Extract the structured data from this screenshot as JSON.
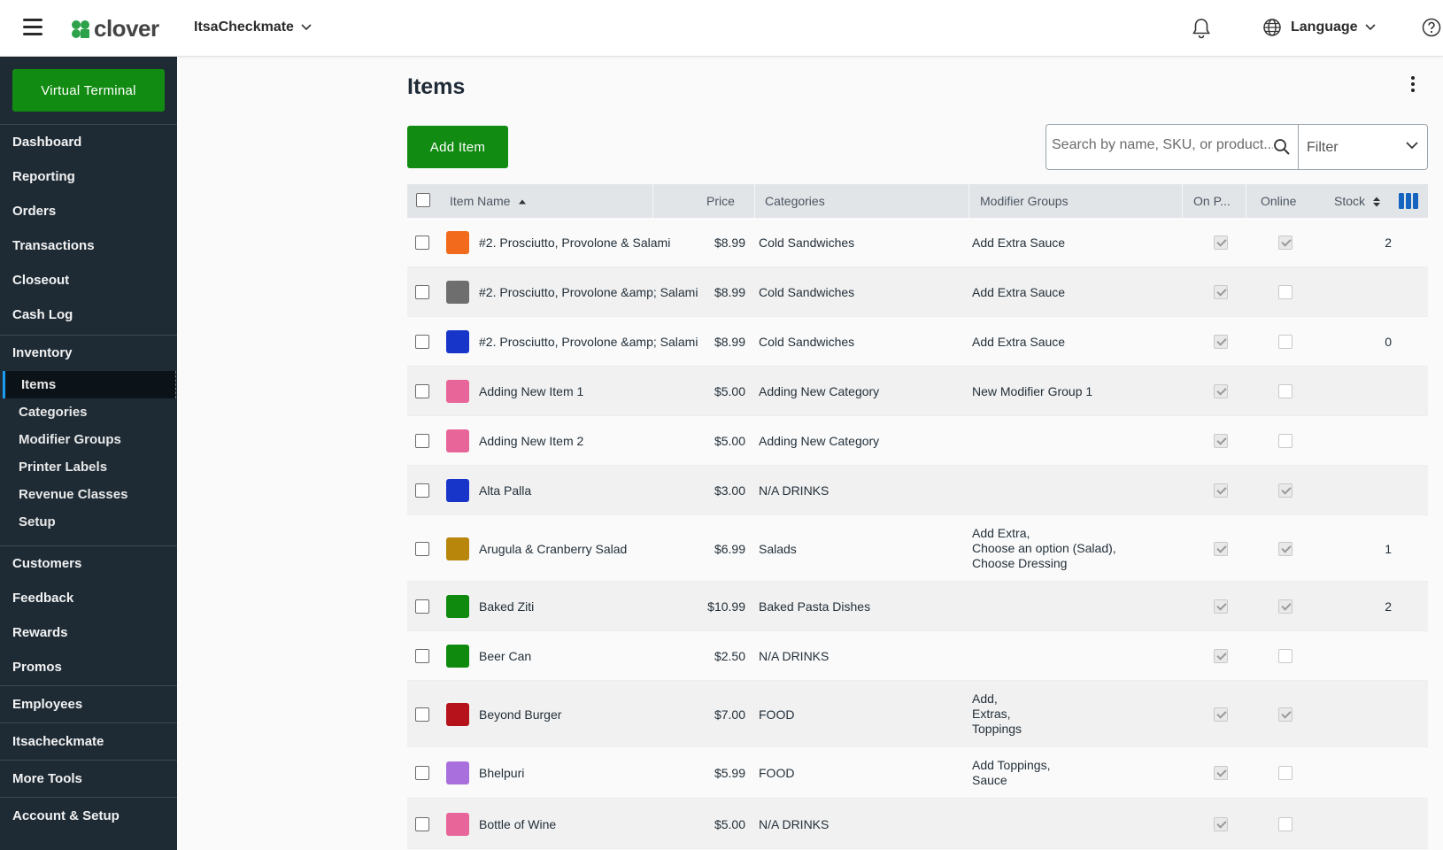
{
  "header": {
    "logo_text": "clover",
    "merchant_name": "ItsaCheckmate",
    "language_label": "Language"
  },
  "sidebar": {
    "virtual_terminal": "Virtual Terminal",
    "group1": [
      "Dashboard",
      "Reporting",
      "Orders",
      "Transactions",
      "Closeout",
      "Cash Log"
    ],
    "inventory_label": "Inventory",
    "inventory_sub": [
      "Items",
      "Categories",
      "Modifier Groups",
      "Printer Labels",
      "Revenue Classes",
      "Setup"
    ],
    "group3": [
      "Customers",
      "Feedback",
      "Rewards",
      "Promos"
    ],
    "employees": "Employees",
    "itsacheckmate": "Itsacheckmate",
    "more_tools": "More Tools",
    "account_setup": "Account & Setup"
  },
  "main": {
    "title": "Items",
    "add_item": "Add Item",
    "search_placeholder": "Search by name, SKU, or product...",
    "filter_label": "Filter"
  },
  "table": {
    "columns": {
      "item_name": "Item Name",
      "price": "Price",
      "categories": "Categories",
      "modifier_groups": "Modifier Groups",
      "on_pos": "On P...",
      "online": "Online",
      "stock": "Stock"
    },
    "rows": [
      {
        "name": "#2. Prosciutto, Provolone & Salami",
        "color": "#f26a1b",
        "price": "$8.99",
        "category": "Cold Sandwiches",
        "modifiers": [
          "Add Extra Sauce"
        ],
        "online": true,
        "stock": "2"
      },
      {
        "name": "#2. Prosciutto, Provolone &amp; Salami",
        "color": "#6e6e6e",
        "price": "$8.99",
        "category": "Cold Sandwiches",
        "modifiers": [
          "Add Extra Sauce"
        ],
        "online": false,
        "stock": ""
      },
      {
        "name": "#2. Prosciutto, Provolone &amp; Salami",
        "color": "#1735c9",
        "price": "$8.99",
        "category": "Cold Sandwiches",
        "modifiers": [
          "Add Extra Sauce"
        ],
        "online": false,
        "stock": "0"
      },
      {
        "name": "Adding New Item 1",
        "color": "#e8659a",
        "price": "$5.00",
        "category": "Adding New Category",
        "modifiers": [
          "New Modifier Group 1"
        ],
        "online": false,
        "stock": ""
      },
      {
        "name": "Adding New Item 2",
        "color": "#e8659a",
        "price": "$5.00",
        "category": "Adding New Category",
        "modifiers": [],
        "online": false,
        "stock": ""
      },
      {
        "name": "Alta Palla",
        "color": "#1735c9",
        "price": "$3.00",
        "category": "N/A DRINKS",
        "modifiers": [],
        "online": true,
        "stock": ""
      },
      {
        "name": "Arugula & Cranberry Salad",
        "color": "#b8860b",
        "price": "$6.99",
        "category": "Salads",
        "modifiers": [
          "Add Extra,",
          "Choose an option (Salad),",
          "Choose Dressing"
        ],
        "online": true,
        "stock": "1"
      },
      {
        "name": "Baked Ziti",
        "color": "#0f8a0f",
        "price": "$10.99",
        "category": "Baked Pasta Dishes",
        "modifiers": [],
        "online": true,
        "stock": "2"
      },
      {
        "name": "Beer Can",
        "color": "#0f8a0f",
        "price": "$2.50",
        "category": "N/A DRINKS",
        "modifiers": [],
        "online": false,
        "stock": ""
      },
      {
        "name": "Beyond Burger",
        "color": "#b5121b",
        "price": "$7.00",
        "category": "FOOD",
        "modifiers": [
          "Add,",
          "Extras,",
          "Toppings"
        ],
        "online": true,
        "stock": ""
      },
      {
        "name": "Bhelpuri",
        "color": "#a970dd",
        "price": "$5.99",
        "category": "FOOD",
        "modifiers": [
          "Add Toppings,",
          "Sauce"
        ],
        "online": false,
        "stock": ""
      },
      {
        "name": "Bottle of Wine",
        "color": "#e8659a",
        "price": "$5.00",
        "category": "N/A DRINKS",
        "modifiers": [],
        "online": false,
        "stock": ""
      }
    ]
  }
}
